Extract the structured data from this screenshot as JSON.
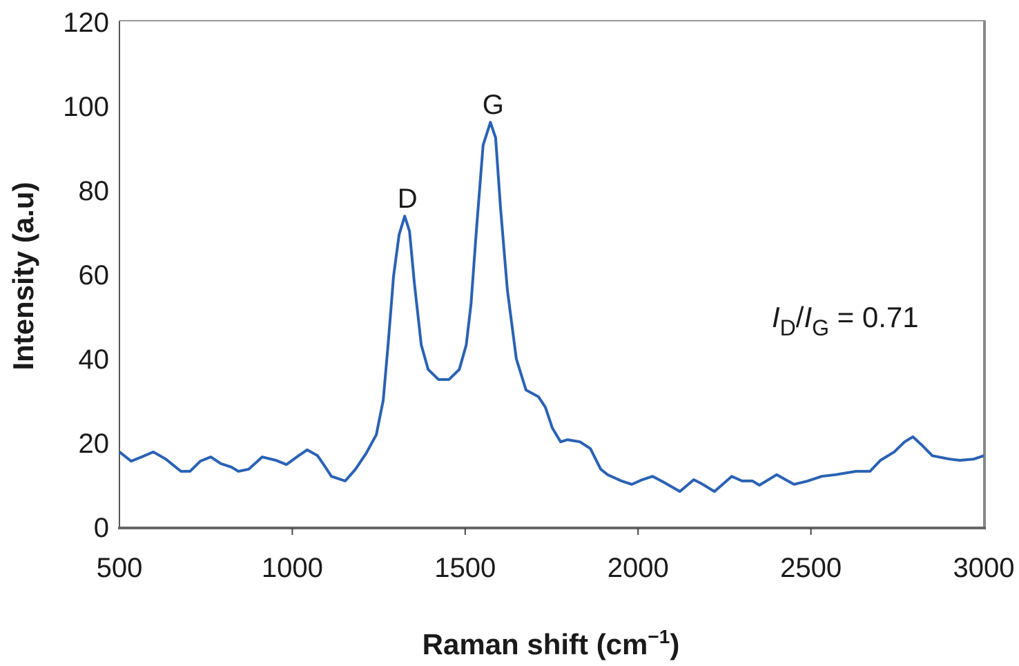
{
  "chart_data": {
    "type": "line",
    "title": "",
    "xlabel": "Raman shift (cm",
    "xlabel_sup": "−1",
    "xlabel_close": ")",
    "ylabel": "Intensity (a.u)",
    "xlim": [
      500,
      3000
    ],
    "ylim": [
      0,
      120
    ],
    "xticks": [
      500,
      1000,
      1500,
      2000,
      2500,
      3000
    ],
    "yticks": [
      0,
      20,
      40,
      60,
      80,
      100,
      120
    ],
    "grid": false,
    "line_color": "#2a62b4",
    "series": [
      {
        "name": "Raman spectrum",
        "x": [
          500,
          534,
          564,
          598,
          634,
          678,
          704,
          734,
          764,
          794,
          824,
          844,
          874,
          913,
          953,
          983,
          1013,
          1043,
          1073,
          1093,
          1113,
          1153,
          1183,
          1213,
          1243,
          1263,
          1277,
          1293,
          1309,
          1325,
          1339,
          1353,
          1373,
          1393,
          1423,
          1453,
          1483,
          1503,
          1517,
          1533,
          1552,
          1573,
          1588,
          1602,
          1622,
          1648,
          1676,
          1712,
          1732,
          1752,
          1776,
          1796,
          1832,
          1862,
          1892,
          1912,
          1952,
          1982,
          2012,
          2042,
          2072,
          2121,
          2161,
          2181,
          2221,
          2271,
          2301,
          2331,
          2351,
          2401,
          2451,
          2491,
          2531,
          2571,
          2631,
          2671,
          2701,
          2741,
          2771,
          2795,
          2821,
          2851,
          2901,
          2931,
          2971,
          3000
        ],
        "y": [
          17.9,
          15.7,
          16.7,
          17.9,
          16.2,
          13.3,
          13.3,
          15.7,
          16.7,
          15.1,
          14.3,
          13.3,
          13.8,
          16.7,
          15.9,
          14.9,
          16.7,
          18.4,
          17.0,
          14.6,
          12.1,
          11.0,
          13.8,
          17.5,
          22.0,
          30.2,
          43.3,
          59.7,
          69.5,
          73.9,
          70.3,
          58.0,
          43.3,
          37.5,
          35.1,
          35.1,
          37.5,
          43.3,
          53.1,
          71.1,
          90.8,
          96.2,
          92.5,
          76.1,
          56.4,
          40.0,
          32.6,
          31.0,
          28.5,
          23.6,
          20.3,
          20.8,
          20.3,
          18.7,
          13.8,
          12.5,
          11.0,
          10.2,
          11.3,
          12.1,
          10.8,
          8.5,
          11.3,
          10.5,
          8.5,
          12.1,
          11.0,
          11.0,
          10.0,
          12.5,
          10.2,
          11.0,
          12.1,
          12.5,
          13.3,
          13.3,
          15.9,
          17.9,
          20.3,
          21.5,
          19.5,
          17.0,
          16.2,
          15.9,
          16.2,
          17.0
        ]
      }
    ],
    "annotations": {
      "peak_d": {
        "label": "D",
        "x": 1325,
        "y": 73.9
      },
      "peak_g": {
        "label": "G",
        "x": 1573,
        "y": 96.2
      },
      "ratio": {
        "i": "I",
        "sub_d": "D",
        "slash": "/",
        "sub_g": "G",
        "value": " = 0.71"
      }
    }
  }
}
